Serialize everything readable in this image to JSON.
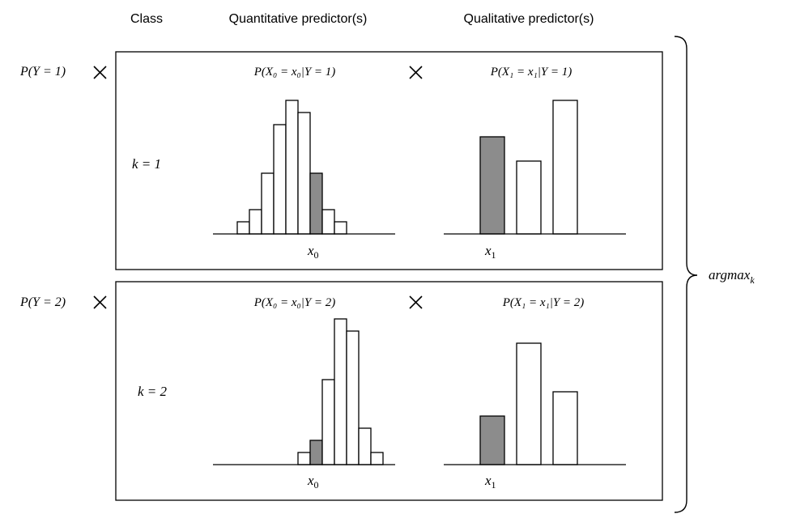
{
  "headers": {
    "class": "Class",
    "quantitative": "Quantitative predictor(s)",
    "qualitative": "Qualitative predictor(s)"
  },
  "operator_icon": "multiplication-sign-icon",
  "argmax_label": "argmax",
  "argmax_subscript": "k",
  "colors": {
    "highlight": "#8c8c8c",
    "plain": "#ffffff",
    "line": "#000000"
  },
  "rows": [
    {
      "prior_label": "P(Y = 1)",
      "k_label": "k = 1",
      "quant_title": "P(X₀ = x₀|Y = 1)",
      "qual_title": "P(X₁ = x₁|Y = 1)",
      "quant_axis_label": "x",
      "quant_axis_sub": "0",
      "qual_axis_label": "x",
      "qual_axis_sub": "1",
      "quant_bars": [
        0.15,
        0.3,
        0.75,
        1.35,
        1.65,
        1.5,
        0.75,
        0.3,
        0.15
      ],
      "quant_highlight": 6,
      "qual_bars": [
        1.2,
        0.9,
        1.65
      ],
      "qual_highlight": 0
    },
    {
      "prior_label": "P(Y = 2)",
      "k_label": "k = 2",
      "quant_title": "P(X₀ = x₀|Y = 2)",
      "qual_title": "P(X₁ = x₁|Y = 2)",
      "quant_axis_label": "x",
      "quant_axis_sub": "0",
      "qual_axis_label": "x",
      "qual_axis_sub": "1",
      "quant_bars": [
        0.15,
        0.3,
        1.05,
        1.8,
        1.65,
        0.45,
        0.15
      ],
      "quant_highlight": 1,
      "qual_bars": [
        0.6,
        1.5,
        0.9
      ],
      "qual_highlight": 0
    }
  ]
}
